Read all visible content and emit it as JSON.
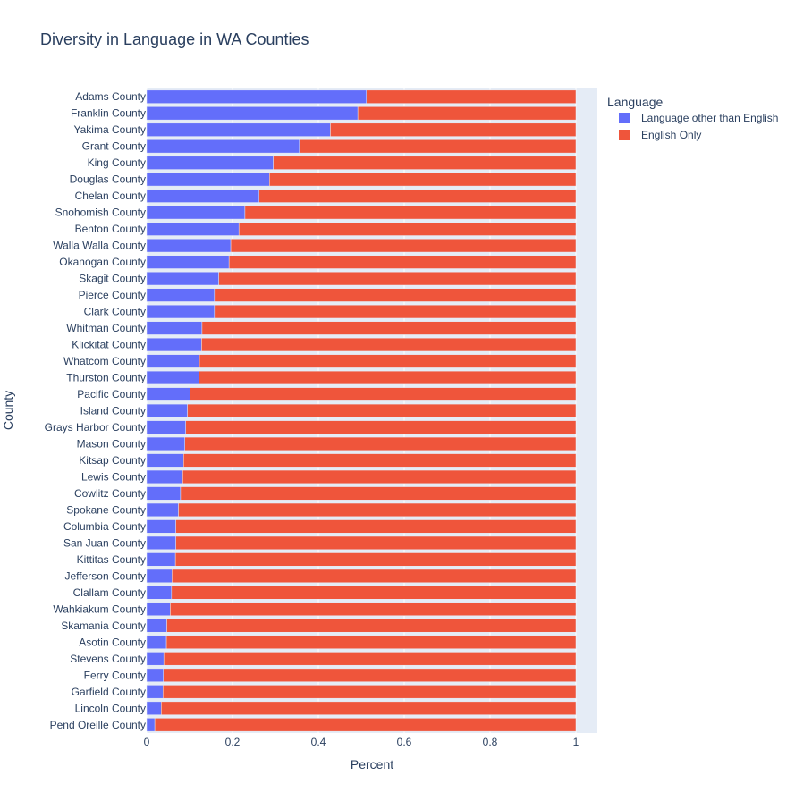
{
  "chart_data": {
    "type": "bar",
    "orientation": "horizontal",
    "barmode": "stack",
    "title": "Diversity in Language in WA Counties",
    "xlabel": "Percent",
    "ylabel": "County",
    "xlim": [
      0,
      1.05
    ],
    "xticks": [
      0,
      0.2,
      0.4,
      0.6,
      0.8,
      1
    ],
    "xtick_labels": [
      "0",
      "0.2",
      "0.4",
      "0.6",
      "0.8",
      "1"
    ],
    "grid": true,
    "legend": {
      "title": "Language",
      "placement": "top-right",
      "entries": [
        "Language other than English",
        "English Only"
      ]
    },
    "categories": [
      "Adams County",
      "Franklin County",
      "Yakima County",
      "Grant County",
      "King County",
      "Douglas County",
      "Chelan County",
      "Snohomish County",
      "Benton County",
      "Walla Walla County",
      "Okanogan County",
      "Skagit County",
      "Pierce County",
      "Clark County",
      "Whitman County",
      "Klickitat County",
      "Whatcom County",
      "Thurston County",
      "Pacific County",
      "Island County",
      "Grays Harbor County",
      "Mason County",
      "Kitsap County",
      "Lewis County",
      "Cowlitz County",
      "Spokane County",
      "Columbia County",
      "San Juan County",
      "Kittitas County",
      "Jefferson County",
      "Clallam County",
      "Wahkiakum County",
      "Skamania County",
      "Asotin County",
      "Stevens County",
      "Ferry County",
      "Garfield County",
      "Lincoln County",
      "Pend Oreille County"
    ],
    "series": [
      {
        "name": "Language other than English",
        "color": "#636efa",
        "values": [
          0.512,
          0.492,
          0.428,
          0.356,
          0.295,
          0.286,
          0.262,
          0.229,
          0.215,
          0.196,
          0.192,
          0.168,
          0.158,
          0.158,
          0.129,
          0.128,
          0.123,
          0.122,
          0.101,
          0.095,
          0.091,
          0.089,
          0.086,
          0.084,
          0.079,
          0.074,
          0.068,
          0.068,
          0.067,
          0.059,
          0.058,
          0.055,
          0.047,
          0.046,
          0.04,
          0.039,
          0.038,
          0.034,
          0.019
        ]
      },
      {
        "name": "English Only",
        "color": "#ef553b",
        "values": [
          0.488,
          0.508,
          0.572,
          0.644,
          0.705,
          0.714,
          0.738,
          0.771,
          0.785,
          0.804,
          0.808,
          0.832,
          0.842,
          0.842,
          0.871,
          0.872,
          0.877,
          0.878,
          0.899,
          0.905,
          0.909,
          0.911,
          0.914,
          0.916,
          0.921,
          0.926,
          0.932,
          0.932,
          0.933,
          0.941,
          0.942,
          0.945,
          0.953,
          0.954,
          0.96,
          0.961,
          0.962,
          0.966,
          0.981
        ]
      }
    ]
  },
  "colors": {
    "plot_background": "#e5ecf6",
    "text": "#2a3f5f",
    "bar_outline": "#e5ecf6"
  }
}
